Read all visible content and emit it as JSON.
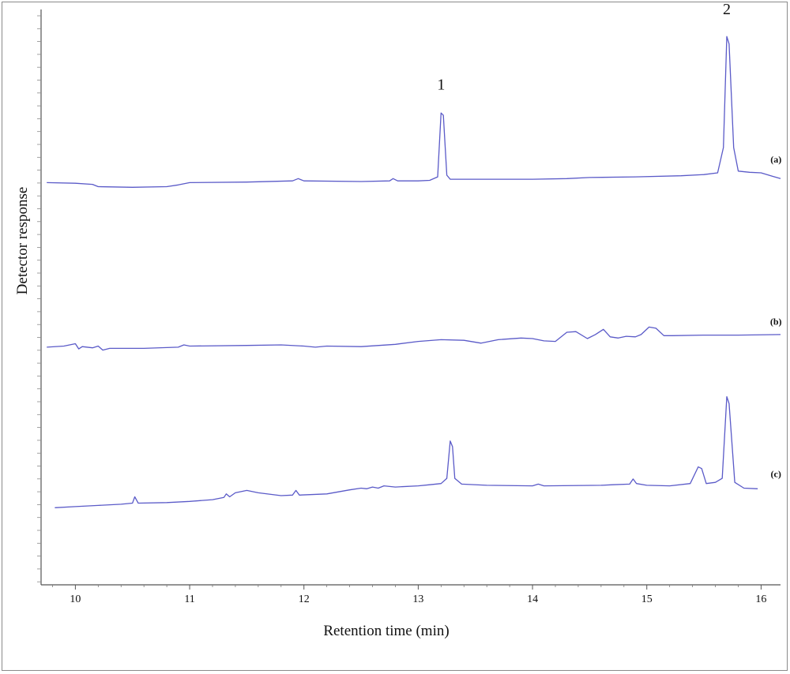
{
  "chart_data": {
    "type": "line",
    "title": "",
    "xlabel": "Retention time (min)",
    "ylabel": "Detector response",
    "xlim": [
      9.7,
      16.17
    ],
    "ylim": [
      0,
      100
    ],
    "x_ticks": [
      10,
      11,
      12,
      13,
      14,
      15,
      16
    ],
    "grid": false,
    "line_color": "#5a5ac8",
    "series": [
      {
        "name": "(a)",
        "points": [
          [
            9.75,
            69.9
          ],
          [
            10.0,
            69.8
          ],
          [
            10.15,
            69.6
          ],
          [
            10.2,
            69.2
          ],
          [
            10.5,
            69.1
          ],
          [
            10.8,
            69.2
          ],
          [
            10.9,
            69.5
          ],
          [
            11.0,
            69.9
          ],
          [
            11.5,
            70.0
          ],
          [
            11.9,
            70.2
          ],
          [
            11.95,
            70.6
          ],
          [
            12.0,
            70.2
          ],
          [
            12.5,
            70.1
          ],
          [
            12.75,
            70.2
          ],
          [
            12.78,
            70.6
          ],
          [
            12.82,
            70.2
          ],
          [
            13.0,
            70.2
          ],
          [
            13.1,
            70.3
          ],
          [
            13.17,
            70.9
          ],
          [
            13.2,
            82.0
          ],
          [
            13.22,
            81.6
          ],
          [
            13.25,
            71.2
          ],
          [
            13.28,
            70.5
          ],
          [
            13.5,
            70.5
          ],
          [
            14.0,
            70.5
          ],
          [
            14.3,
            70.6
          ],
          [
            14.5,
            70.8
          ],
          [
            14.9,
            70.9
          ],
          [
            15.3,
            71.1
          ],
          [
            15.5,
            71.3
          ],
          [
            15.62,
            71.6
          ],
          [
            15.67,
            76.0
          ],
          [
            15.7,
            95.3
          ],
          [
            15.72,
            94.0
          ],
          [
            15.76,
            76.0
          ],
          [
            15.8,
            71.9
          ],
          [
            15.9,
            71.7
          ],
          [
            16.0,
            71.6
          ],
          [
            16.1,
            71.0
          ],
          [
            16.17,
            70.6
          ]
        ]
      },
      {
        "name": "(b)",
        "points": [
          [
            9.75,
            41.3
          ],
          [
            9.9,
            41.5
          ],
          [
            10.0,
            41.9
          ],
          [
            10.03,
            41.0
          ],
          [
            10.06,
            41.4
          ],
          [
            10.15,
            41.2
          ],
          [
            10.2,
            41.5
          ],
          [
            10.24,
            40.8
          ],
          [
            10.3,
            41.1
          ],
          [
            10.6,
            41.1
          ],
          [
            10.9,
            41.3
          ],
          [
            10.95,
            41.7
          ],
          [
            11.0,
            41.5
          ],
          [
            11.5,
            41.6
          ],
          [
            11.8,
            41.7
          ],
          [
            12.0,
            41.5
          ],
          [
            12.1,
            41.3
          ],
          [
            12.2,
            41.5
          ],
          [
            12.5,
            41.4
          ],
          [
            12.8,
            41.8
          ],
          [
            13.0,
            42.3
          ],
          [
            13.2,
            42.6
          ],
          [
            13.4,
            42.5
          ],
          [
            13.55,
            42.0
          ],
          [
            13.7,
            42.6
          ],
          [
            13.9,
            42.9
          ],
          [
            14.0,
            42.8
          ],
          [
            14.1,
            42.4
          ],
          [
            14.2,
            42.3
          ],
          [
            14.3,
            43.9
          ],
          [
            14.38,
            44.0
          ],
          [
            14.48,
            42.8
          ],
          [
            14.55,
            43.5
          ],
          [
            14.62,
            44.4
          ],
          [
            14.68,
            43.1
          ],
          [
            14.75,
            42.9
          ],
          [
            14.82,
            43.2
          ],
          [
            14.9,
            43.1
          ],
          [
            14.95,
            43.5
          ],
          [
            15.02,
            44.8
          ],
          [
            15.08,
            44.6
          ],
          [
            15.15,
            43.3
          ],
          [
            15.22,
            43.3
          ],
          [
            15.5,
            43.4
          ],
          [
            15.8,
            43.4
          ],
          [
            16.17,
            43.5
          ]
        ]
      },
      {
        "name": "(c)",
        "points": [
          [
            9.82,
            13.4
          ],
          [
            10.0,
            13.6
          ],
          [
            10.2,
            13.8
          ],
          [
            10.4,
            14.0
          ],
          [
            10.5,
            14.2
          ],
          [
            10.52,
            15.3
          ],
          [
            10.55,
            14.2
          ],
          [
            10.8,
            14.3
          ],
          [
            11.0,
            14.5
          ],
          [
            11.2,
            14.8
          ],
          [
            11.3,
            15.2
          ],
          [
            11.32,
            15.8
          ],
          [
            11.35,
            15.3
          ],
          [
            11.4,
            16.0
          ],
          [
            11.45,
            16.2
          ],
          [
            11.5,
            16.4
          ],
          [
            11.6,
            16.0
          ],
          [
            11.8,
            15.5
          ],
          [
            11.9,
            15.6
          ],
          [
            11.93,
            16.4
          ],
          [
            11.96,
            15.6
          ],
          [
            12.2,
            15.8
          ],
          [
            12.4,
            16.5
          ],
          [
            12.5,
            16.8
          ],
          [
            12.55,
            16.7
          ],
          [
            12.6,
            17.0
          ],
          [
            12.65,
            16.8
          ],
          [
            12.7,
            17.2
          ],
          [
            12.8,
            17.0
          ],
          [
            13.0,
            17.2
          ],
          [
            13.1,
            17.4
          ],
          [
            13.2,
            17.6
          ],
          [
            13.25,
            18.5
          ],
          [
            13.28,
            25.0
          ],
          [
            13.3,
            24.0
          ],
          [
            13.32,
            18.5
          ],
          [
            13.38,
            17.5
          ],
          [
            13.6,
            17.3
          ],
          [
            14.0,
            17.2
          ],
          [
            14.05,
            17.5
          ],
          [
            14.1,
            17.2
          ],
          [
            14.6,
            17.3
          ],
          [
            14.7,
            17.4
          ],
          [
            14.85,
            17.5
          ],
          [
            14.88,
            18.4
          ],
          [
            14.91,
            17.6
          ],
          [
            15.0,
            17.3
          ],
          [
            15.2,
            17.2
          ],
          [
            15.38,
            17.6
          ],
          [
            15.45,
            20.5
          ],
          [
            15.48,
            20.2
          ],
          [
            15.52,
            17.6
          ],
          [
            15.6,
            17.8
          ],
          [
            15.66,
            18.5
          ],
          [
            15.7,
            32.7
          ],
          [
            15.72,
            31.5
          ],
          [
            15.77,
            17.8
          ],
          [
            15.85,
            16.8
          ],
          [
            15.97,
            16.7
          ]
        ]
      }
    ],
    "peak_labels": [
      {
        "text": "1",
        "x": 13.2,
        "y": 86.1
      },
      {
        "text": "2",
        "x": 15.7,
        "y": 99.2
      }
    ],
    "trace_labels": [
      {
        "text": "(a)",
        "x": 16.13,
        "y": 73.4
      },
      {
        "text": "(b)",
        "x": 16.13,
        "y": 45.2
      },
      {
        "text": "(c)",
        "x": 16.13,
        "y": 18.7
      }
    ]
  }
}
